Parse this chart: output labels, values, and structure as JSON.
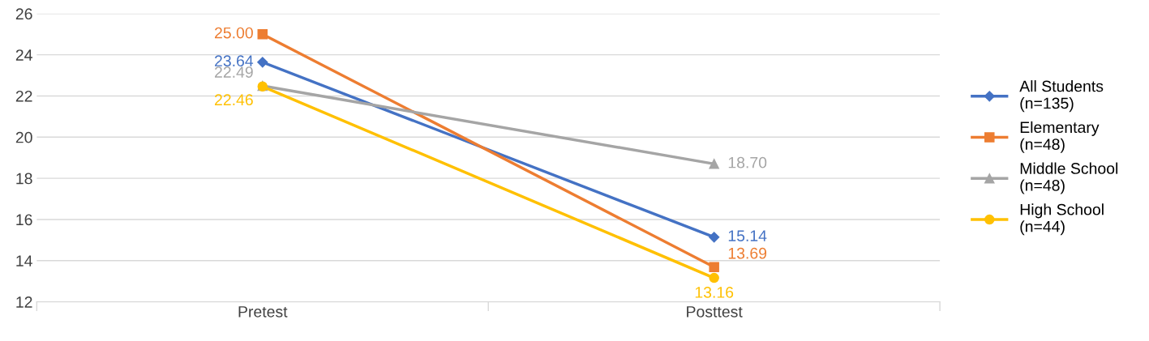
{
  "chart_data": {
    "type": "line",
    "categories": [
      "Pretest",
      "Posttest"
    ],
    "series": [
      {
        "name": "All Students\n(n=135)",
        "color": "#4472c4",
        "marker": "diamond",
        "values": [
          23.64,
          15.14
        ],
        "value_labels": [
          "23.64",
          "15.14"
        ]
      },
      {
        "name": "Elementary\n(n=48)",
        "color": "#ed7d31",
        "marker": "square",
        "values": [
          25.0,
          13.69
        ],
        "value_labels": [
          "25.00",
          "13.69"
        ]
      },
      {
        "name": "Middle School\n(n=48)",
        "color": "#a5a5a5",
        "marker": "triangle",
        "values": [
          22.49,
          18.7
        ],
        "value_labels": [
          "22.49",
          "18.70"
        ]
      },
      {
        "name": "High School\n(n=44)",
        "color": "#ffc000",
        "marker": "circle",
        "values": [
          22.46,
          13.16
        ],
        "value_labels": [
          "22.46",
          "13.16"
        ]
      }
    ],
    "ylim": [
      12,
      26
    ],
    "yticks": [
      12,
      14,
      16,
      18,
      20,
      22,
      24,
      26
    ],
    "grid": "y",
    "legend": "right",
    "line_style": "solid"
  }
}
